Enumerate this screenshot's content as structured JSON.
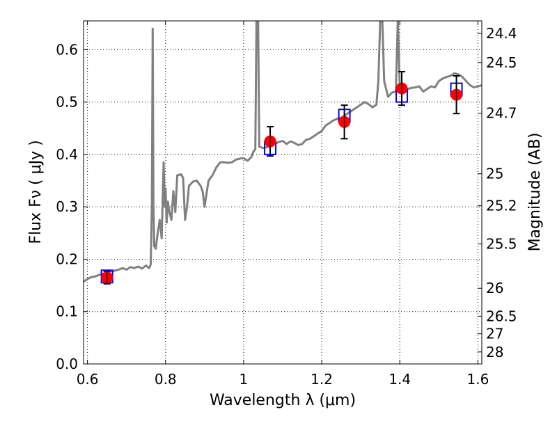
{
  "chart_data": {
    "type": "line",
    "title": "",
    "xlabel": "Wavelength  λ (μm)",
    "ylabel": "Flux  Fν  ( μJy )",
    "ylabel_right": "Magnitude (AB)",
    "xlim": [
      0.59,
      1.61
    ],
    "ylim": [
      0.0,
      0.655
    ],
    "grid": true,
    "x_ticks": [
      {
        "value": 0.6,
        "label": "0.6"
      },
      {
        "value": 0.8,
        "label": "0.8"
      },
      {
        "value": 1.0,
        "label": "1"
      },
      {
        "value": 1.2,
        "label": "1.2"
      },
      {
        "value": 1.4,
        "label": "1.4"
      },
      {
        "value": 1.6,
        "label": "1.6"
      }
    ],
    "y_ticks": [
      {
        "value": 0.0,
        "label": "0.0"
      },
      {
        "value": 0.1,
        "label": "0.1"
      },
      {
        "value": 0.2,
        "label": "0.2"
      },
      {
        "value": 0.3,
        "label": "0.3"
      },
      {
        "value": 0.4,
        "label": "0.4"
      },
      {
        "value": 0.5,
        "label": "0.5"
      },
      {
        "value": 0.6,
        "label": "0.6"
      }
    ],
    "mag_ticks": [
      {
        "value": 24.4,
        "label": "24.4"
      },
      {
        "value": 24.5,
        "label": "24.5"
      },
      {
        "value": 24.7,
        "label": "24.7"
      },
      {
        "value": 25.0,
        "label": "25"
      },
      {
        "value": 25.2,
        "label": "25.2"
      },
      {
        "value": 25.5,
        "label": "25.5"
      },
      {
        "value": 26.0,
        "label": "26"
      },
      {
        "value": 26.5,
        "label": "26.5"
      },
      {
        "value": 27.0,
        "label": "27"
      },
      {
        "value": 28.0,
        "label": "28"
      }
    ],
    "series": [
      {
        "name": "model_spectrum",
        "style": "line",
        "color": "#808080",
        "points": [
          [
            0.59,
            0.157
          ],
          [
            0.6,
            0.162
          ],
          [
            0.61,
            0.166
          ],
          [
            0.62,
            0.167
          ],
          [
            0.63,
            0.17
          ],
          [
            0.64,
            0.172
          ],
          [
            0.65,
            0.175
          ],
          [
            0.66,
            0.177
          ],
          [
            0.67,
            0.178
          ],
          [
            0.68,
            0.18
          ],
          [
            0.69,
            0.183
          ],
          [
            0.7,
            0.18
          ],
          [
            0.71,
            0.185
          ],
          [
            0.72,
            0.183
          ],
          [
            0.73,
            0.186
          ],
          [
            0.74,
            0.182
          ],
          [
            0.75,
            0.188
          ],
          [
            0.758,
            0.183
          ],
          [
            0.762,
            0.19
          ],
          [
            0.765,
            0.3
          ],
          [
            0.767,
            0.64
          ],
          [
            0.769,
            0.3
          ],
          [
            0.771,
            0.225
          ],
          [
            0.775,
            0.22
          ],
          [
            0.78,
            0.25
          ],
          [
            0.785,
            0.275
          ],
          [
            0.79,
            0.24
          ],
          [
            0.795,
            0.385
          ],
          [
            0.798,
            0.3
          ],
          [
            0.8,
            0.335
          ],
          [
            0.803,
            0.27
          ],
          [
            0.806,
            0.31
          ],
          [
            0.81,
            0.29
          ],
          [
            0.815,
            0.275
          ],
          [
            0.82,
            0.33
          ],
          [
            0.825,
            0.29
          ],
          [
            0.83,
            0.36
          ],
          [
            0.84,
            0.362
          ],
          [
            0.845,
            0.355
          ],
          [
            0.85,
            0.275
          ],
          [
            0.855,
            0.3
          ],
          [
            0.86,
            0.34
          ],
          [
            0.87,
            0.348
          ],
          [
            0.88,
            0.35
          ],
          [
            0.89,
            0.34
          ],
          [
            0.895,
            0.33
          ],
          [
            0.9,
            0.3
          ],
          [
            0.905,
            0.325
          ],
          [
            0.91,
            0.35
          ],
          [
            0.92,
            0.36
          ],
          [
            0.93,
            0.375
          ],
          [
            0.94,
            0.385
          ],
          [
            0.95,
            0.385
          ],
          [
            0.96,
            0.384
          ],
          [
            0.97,
            0.385
          ],
          [
            0.98,
            0.39
          ],
          [
            0.99,
            0.392
          ],
          [
            1.0,
            0.393
          ],
          [
            1.01,
            0.388
          ],
          [
            1.02,
            0.395
          ],
          [
            1.025,
            0.405
          ],
          [
            1.03,
            0.41
          ],
          [
            1.033,
            0.66
          ],
          [
            1.037,
            0.66
          ],
          [
            1.04,
            0.415
          ],
          [
            1.05,
            0.412
          ],
          [
            1.06,
            0.414
          ],
          [
            1.07,
            0.416
          ],
          [
            1.08,
            0.42
          ],
          [
            1.09,
            0.424
          ],
          [
            1.1,
            0.426
          ],
          [
            1.11,
            0.42
          ],
          [
            1.12,
            0.425
          ],
          [
            1.13,
            0.422
          ],
          [
            1.14,
            0.418
          ],
          [
            1.15,
            0.42
          ],
          [
            1.16,
            0.428
          ],
          [
            1.17,
            0.43
          ],
          [
            1.18,
            0.435
          ],
          [
            1.19,
            0.44
          ],
          [
            1.2,
            0.445
          ],
          [
            1.21,
            0.455
          ],
          [
            1.22,
            0.46
          ],
          [
            1.23,
            0.465
          ],
          [
            1.24,
            0.468
          ],
          [
            1.25,
            0.47
          ],
          [
            1.26,
            0.475
          ],
          [
            1.27,
            0.48
          ],
          [
            1.28,
            0.485
          ],
          [
            1.29,
            0.49
          ],
          [
            1.3,
            0.495
          ],
          [
            1.31,
            0.5
          ],
          [
            1.32,
            0.496
          ],
          [
            1.33,
            0.49
          ],
          [
            1.34,
            0.495
          ],
          [
            1.345,
            0.54
          ],
          [
            1.35,
            0.66
          ],
          [
            1.355,
            0.66
          ],
          [
            1.36,
            0.54
          ],
          [
            1.37,
            0.51
          ],
          [
            1.38,
            0.518
          ],
          [
            1.39,
            0.52
          ],
          [
            1.395,
            0.66
          ],
          [
            1.4,
            0.53
          ],
          [
            1.41,
            0.525
          ],
          [
            1.42,
            0.525
          ],
          [
            1.43,
            0.527
          ],
          [
            1.44,
            0.528
          ],
          [
            1.45,
            0.53
          ],
          [
            1.46,
            0.52
          ],
          [
            1.47,
            0.525
          ],
          [
            1.48,
            0.53
          ],
          [
            1.49,
            0.528
          ],
          [
            1.5,
            0.54
          ],
          [
            1.51,
            0.545
          ],
          [
            1.52,
            0.548
          ],
          [
            1.53,
            0.55
          ],
          [
            1.54,
            0.555
          ],
          [
            1.55,
            0.553
          ],
          [
            1.56,
            0.548
          ],
          [
            1.57,
            0.54
          ],
          [
            1.58,
            0.532
          ],
          [
            1.59,
            0.528
          ],
          [
            1.6,
            0.53
          ],
          [
            1.61,
            0.532
          ]
        ]
      },
      {
        "name": "observed_photometry",
        "style": "marker-circle",
        "color": "#ff0000",
        "points": [
          {
            "x": 0.65,
            "y": 0.165,
            "err": 0.012
          },
          {
            "x": 1.068,
            "y": 0.425,
            "err": 0.028
          },
          {
            "x": 1.258,
            "y": 0.462,
            "err": 0.032
          },
          {
            "x": 1.405,
            "y": 0.526,
            "err": 0.032
          },
          {
            "x": 1.545,
            "y": 0.514,
            "err": 0.036
          }
        ]
      },
      {
        "name": "model_photometry",
        "style": "marker-square-open",
        "color": "#0000ff",
        "points": [
          {
            "x": 0.65,
            "y": 0.167
          },
          {
            "x": 1.068,
            "y": 0.412
          },
          {
            "x": 1.258,
            "y": 0.474
          },
          {
            "x": 1.405,
            "y": 0.512
          },
          {
            "x": 1.545,
            "y": 0.524
          }
        ]
      }
    ]
  }
}
